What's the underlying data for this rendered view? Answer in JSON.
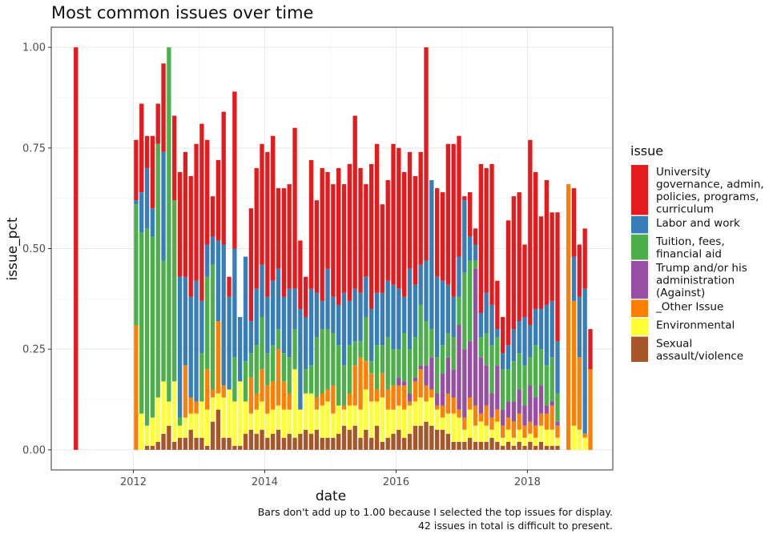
{
  "chart_data": {
    "type": "bar",
    "stacked": true,
    "title": "Most common issues over time",
    "xlabel": "date",
    "ylabel": "issue_pct",
    "x_ticks": [
      "2012",
      "2014",
      "2016",
      "2018"
    ],
    "y_ticks": [
      "0.00",
      "0.25",
      "0.50",
      "0.75",
      "1.00"
    ],
    "xlim": [
      2010.75,
      2019.3
    ],
    "ylim": [
      -0.05,
      1.05
    ],
    "grid": true,
    "legend_title": "issue",
    "legend_position": "right",
    "caption": [
      "Bars don't add up to 1.00 because I selected the top issues for display.",
      "42 issues in total is difficult to present."
    ],
    "series": [
      {
        "name": "Sexual assault/violence",
        "label_lines": [
          "Sexual",
          "assault/violence"
        ],
        "color": "#A65628"
      },
      {
        "name": "Environmental",
        "label_lines": [
          "Environmental"
        ],
        "color": "#FFFF33"
      },
      {
        "name": "_Other Issue",
        "label_lines": [
          "_Other Issue"
        ],
        "color": "#FF7F00"
      },
      {
        "name": "Trump and/or his administration (Against)",
        "label_lines": [
          "Trump and/or his",
          "administration",
          "(Against)"
        ],
        "color": "#984EA3"
      },
      {
        "name": "Tuition, fees, financial aid",
        "label_lines": [
          "Tuition, fees,",
          "financial aid"
        ],
        "color": "#4DAF4A"
      },
      {
        "name": "Labor and work",
        "label_lines": [
          "Labor and work"
        ],
        "color": "#377EB8"
      },
      {
        "name": "University governance, admin, policies, programs, curriculum",
        "label_lines": [
          "University",
          "governance, admin,",
          "policies, programs,",
          "curriculum"
        ],
        "color": "#E41A1C"
      }
    ],
    "legend_order": [
      6,
      5,
      4,
      3,
      2,
      1,
      0
    ],
    "bars": [
      {
        "date": "2011-02",
        "cum": [
          0,
          0,
          0,
          0,
          0,
          0,
          1.0
        ]
      },
      {
        "date": "2012-01",
        "cum": [
          0,
          0,
          0.31,
          0.31,
          0.61,
          0.62,
          0.77
        ]
      },
      {
        "date": "2012-02",
        "cum": [
          0,
          0.09,
          0.09,
          0.09,
          0.54,
          0.64,
          0.86
        ]
      },
      {
        "date": "2012-03",
        "cum": [
          0.01,
          0.06,
          0.06,
          0.06,
          0.55,
          0.7,
          0.78
        ]
      },
      {
        "date": "2012-04",
        "cum": [
          0.01,
          0.08,
          0.08,
          0.08,
          0.53,
          0.6,
          0.78
        ]
      },
      {
        "date": "2012-05",
        "cum": [
          0.02,
          0.13,
          0.13,
          0.13,
          0.76,
          0.76,
          0.86
        ]
      },
      {
        "date": "2012-06",
        "cum": [
          0.04,
          0.17,
          0.17,
          0.17,
          0.47,
          0.74,
          0.96
        ]
      },
      {
        "date": "2012-07",
        "cum": [
          0.06,
          0.12,
          0.12,
          0.12,
          1.0,
          1.0,
          1.0
        ]
      },
      {
        "date": "2012-08",
        "cum": [
          0.02,
          0.17,
          0.17,
          0.17,
          0.62,
          0.62,
          0.83
        ]
      },
      {
        "date": "2012-09",
        "cum": [
          0.03,
          0.06,
          0.06,
          0.06,
          0.08,
          0.43,
          0.69
        ]
      },
      {
        "date": "2012-10",
        "cum": [
          0.03,
          0.08,
          0.21,
          0.21,
          0.21,
          0.43,
          0.74
        ]
      },
      {
        "date": "2012-11",
        "cum": [
          0.05,
          0.09,
          0.13,
          0.13,
          0.13,
          0.38,
          0.68
        ]
      },
      {
        "date": "2012-12",
        "cum": [
          0.03,
          0.09,
          0.12,
          0.12,
          0.12,
          0.42,
          0.76
        ]
      },
      {
        "date": "2013-01",
        "cum": [
          0.03,
          0.12,
          0.12,
          0.12,
          0.24,
          0.37,
          0.81
        ]
      },
      {
        "date": "2013-02",
        "cum": [
          0.01,
          0.1,
          0.2,
          0.2,
          0.43,
          0.51,
          0.77
        ]
      },
      {
        "date": "2013-03",
        "cum": [
          0.07,
          0.13,
          0.15,
          0.15,
          0.46,
          0.53,
          0.63
        ]
      },
      {
        "date": "2013-04",
        "cum": [
          0.1,
          0.14,
          0.32,
          0.32,
          0.32,
          0.52,
          0.72
        ]
      },
      {
        "date": "2013-05",
        "cum": [
          0.03,
          0.13,
          0.16,
          0.16,
          0.16,
          0.51,
          0.84
        ]
      },
      {
        "date": "2013-06",
        "cum": [
          0.03,
          0.15,
          0.15,
          0.15,
          0.15,
          0.38,
          0.43
        ]
      },
      {
        "date": "2013-07",
        "cum": [
          0.01,
          0.12,
          0.12,
          0.12,
          0.23,
          0.5,
          0.89
        ]
      },
      {
        "date": "2013-08",
        "cum": [
          0.01,
          0.17,
          0.17,
          0.17,
          0.17,
          0.33,
          0.33
        ]
      },
      {
        "date": "2013-09",
        "cum": [
          0.04,
          0.12,
          0.12,
          0.12,
          0.22,
          0.48,
          0.48
        ]
      },
      {
        "date": "2013-10",
        "cum": [
          0.05,
          0.09,
          0.18,
          0.18,
          0.24,
          0.32,
          0.6
        ]
      },
      {
        "date": "2013-11",
        "cum": [
          0.04,
          0.1,
          0.14,
          0.14,
          0.26,
          0.4,
          0.7
        ]
      },
      {
        "date": "2013-12",
        "cum": [
          0.05,
          0.12,
          0.2,
          0.2,
          0.33,
          0.46,
          0.76
        ]
      },
      {
        "date": "2014-01",
        "cum": [
          0.03,
          0.09,
          0.16,
          0.16,
          0.24,
          0.38,
          0.74
        ]
      },
      {
        "date": "2014-02",
        "cum": [
          0.04,
          0.1,
          0.17,
          0.17,
          0.26,
          0.42,
          0.78
        ]
      },
      {
        "date": "2014-03",
        "cum": [
          0.05,
          0.11,
          0.25,
          0.25,
          0.3,
          0.45,
          0.65
        ]
      },
      {
        "date": "2014-04",
        "cum": [
          0.03,
          0.1,
          0.17,
          0.17,
          0.24,
          0.38,
          0.65
        ]
      },
      {
        "date": "2014-05",
        "cum": [
          0.04,
          0.1,
          0.14,
          0.14,
          0.23,
          0.4,
          0.66
        ]
      },
      {
        "date": "2014-06",
        "cum": [
          0.03,
          0.2,
          0.2,
          0.2,
          0.3,
          0.4,
          0.8
        ]
      },
      {
        "date": "2014-07",
        "cum": [
          0.04,
          0.1,
          0.1,
          0.1,
          0.1,
          0.35,
          0.52
        ]
      },
      {
        "date": "2014-08",
        "cum": [
          0.05,
          0.14,
          0.14,
          0.14,
          0.2,
          0.33,
          0.43
        ]
      },
      {
        "date": "2014-09",
        "cum": [
          0.04,
          0.14,
          0.14,
          0.14,
          0.21,
          0.4,
          0.72
        ]
      },
      {
        "date": "2014-10",
        "cum": [
          0.05,
          0.1,
          0.13,
          0.13,
          0.28,
          0.39,
          0.62
        ]
      },
      {
        "date": "2014-11",
        "cum": [
          0.03,
          0.11,
          0.14,
          0.14,
          0.3,
          0.37,
          0.7
        ]
      },
      {
        "date": "2014-12",
        "cum": [
          0.03,
          0.12,
          0.15,
          0.15,
          0.3,
          0.45,
          0.69
        ]
      },
      {
        "date": "2015-01",
        "cum": [
          0.03,
          0.09,
          0.16,
          0.16,
          0.29,
          0.38,
          0.66
        ]
      },
      {
        "date": "2015-02",
        "cum": [
          0.04,
          0.11,
          0.11,
          0.11,
          0.26,
          0.36,
          0.7
        ]
      },
      {
        "date": "2015-03",
        "cum": [
          0.06,
          0.1,
          0.11,
          0.11,
          0.21,
          0.39,
          0.66
        ]
      },
      {
        "date": "2015-04",
        "cum": [
          0.05,
          0.11,
          0.14,
          0.14,
          0.26,
          0.37,
          0.71
        ]
      },
      {
        "date": "2015-05",
        "cum": [
          0.06,
          0.11,
          0.21,
          0.21,
          0.27,
          0.4,
          0.83
        ]
      },
      {
        "date": "2015-06",
        "cum": [
          0.03,
          0.1,
          0.23,
          0.23,
          0.27,
          0.39,
          0.7
        ]
      },
      {
        "date": "2015-07",
        "cum": [
          0.05,
          0.15,
          0.22,
          0.22,
          0.33,
          0.43,
          0.66
        ]
      },
      {
        "date": "2015-08",
        "cum": [
          0.03,
          0.12,
          0.19,
          0.19,
          0.22,
          0.35,
          0.71
        ]
      },
      {
        "date": "2015-09",
        "cum": [
          0.06,
          0.12,
          0.15,
          0.15,
          0.26,
          0.39,
          0.76
        ]
      },
      {
        "date": "2015-10",
        "cum": [
          0.02,
          0.13,
          0.19,
          0.19,
          0.26,
          0.39,
          0.61
        ]
      },
      {
        "date": "2015-11",
        "cum": [
          0.03,
          0.1,
          0.15,
          0.15,
          0.28,
          0.42,
          0.67
        ]
      },
      {
        "date": "2015-12",
        "cum": [
          0.04,
          0.1,
          0.16,
          0.16,
          0.25,
          0.41,
          0.76
        ]
      },
      {
        "date": "2016-01",
        "cum": [
          0.05,
          0.11,
          0.16,
          0.18,
          0.25,
          0.4,
          0.75
        ]
      },
      {
        "date": "2016-02",
        "cum": [
          0.03,
          0.1,
          0.16,
          0.17,
          0.29,
          0.38,
          0.69
        ]
      },
      {
        "date": "2016-03",
        "cum": [
          0.04,
          0.11,
          0.12,
          0.14,
          0.25,
          0.45,
          0.74
        ]
      },
      {
        "date": "2016-04",
        "cum": [
          0.06,
          0.12,
          0.17,
          0.18,
          0.28,
          0.41,
          0.68
        ]
      },
      {
        "date": "2016-05",
        "cum": [
          0.06,
          0.13,
          0.2,
          0.21,
          0.36,
          0.46,
          0.74
        ]
      },
      {
        "date": "2016-06",
        "cum": [
          0.07,
          0.12,
          0.16,
          0.21,
          0.32,
          0.47,
          1.0
        ]
      },
      {
        "date": "2016-07",
        "cum": [
          0.06,
          0.13,
          0.15,
          0.23,
          0.3,
          0.67,
          0.67
        ]
      },
      {
        "date": "2016-08",
        "cum": [
          0.05,
          0.1,
          0.11,
          0.14,
          0.23,
          0.43,
          0.65
        ]
      },
      {
        "date": "2016-09",
        "cum": [
          0.05,
          0.08,
          0.11,
          0.19,
          0.26,
          0.42,
          0.64
        ]
      },
      {
        "date": "2016-10",
        "cum": [
          0.04,
          0.09,
          0.14,
          0.23,
          0.29,
          0.41,
          0.76
        ]
      },
      {
        "date": "2016-11",
        "cum": [
          0.02,
          0.09,
          0.13,
          0.2,
          0.28,
          0.38,
          0.76
        ]
      },
      {
        "date": "2016-12",
        "cum": [
          0.02,
          0.08,
          0.1,
          0.31,
          0.38,
          0.48,
          0.78
        ]
      },
      {
        "date": "2017-01",
        "cum": [
          0.02,
          0.05,
          0.08,
          0.25,
          0.44,
          0.62,
          0.63
        ]
      },
      {
        "date": "2017-02",
        "cum": [
          0.03,
          0.1,
          0.13,
          0.27,
          0.47,
          0.53,
          0.64
        ]
      },
      {
        "date": "2017-03",
        "cum": [
          0.02,
          0.06,
          0.11,
          0.45,
          0.47,
          0.51,
          0.55
        ]
      },
      {
        "date": "2017-04",
        "cum": [
          0.02,
          0.07,
          0.09,
          0.23,
          0.28,
          0.34,
          0.71
        ]
      },
      {
        "date": "2017-05",
        "cum": [
          0.02,
          0.06,
          0.11,
          0.21,
          0.29,
          0.39,
          0.7
        ]
      },
      {
        "date": "2017-06",
        "cum": [
          0.03,
          0.05,
          0.08,
          0.14,
          0.26,
          0.36,
          0.71
        ]
      },
      {
        "date": "2017-07",
        "cum": [
          0.02,
          0.07,
          0.1,
          0.21,
          0.28,
          0.3,
          0.42
        ]
      },
      {
        "date": "2017-08",
        "cum": [
          0.01,
          0.03,
          0.06,
          0.1,
          0.2,
          0.24,
          0.33
        ]
      },
      {
        "date": "2017-09",
        "cum": [
          0.02,
          0.05,
          0.08,
          0.12,
          0.2,
          0.26,
          0.57
        ]
      },
      {
        "date": "2017-10",
        "cum": [
          0.01,
          0.03,
          0.07,
          0.12,
          0.22,
          0.3,
          0.63
        ]
      },
      {
        "date": "2017-11",
        "cum": [
          0.02,
          0.05,
          0.09,
          0.15,
          0.24,
          0.32,
          0.64
        ]
      },
      {
        "date": "2017-12",
        "cum": [
          0.01,
          0.03,
          0.06,
          0.11,
          0.21,
          0.33,
          0.51
        ]
      },
      {
        "date": "2018-01",
        "cum": [
          0.02,
          0.04,
          0.07,
          0.16,
          0.23,
          0.31,
          0.77
        ]
      },
      {
        "date": "2018-02",
        "cum": [
          0.01,
          0.03,
          0.06,
          0.13,
          0.26,
          0.35,
          0.69
        ]
      },
      {
        "date": "2018-03",
        "cum": [
          0.02,
          0.06,
          0.09,
          0.16,
          0.25,
          0.35,
          0.58
        ]
      },
      {
        "date": "2018-04",
        "cum": [
          0.01,
          0.05,
          0.09,
          0.11,
          0.21,
          0.36,
          0.67
        ]
      },
      {
        "date": "2018-05",
        "cum": [
          0.01,
          0.05,
          0.11,
          0.12,
          0.23,
          0.37,
          0.59
        ]
      },
      {
        "date": "2018-06",
        "cum": [
          0.01,
          0.03,
          0.06,
          0.07,
          0.14,
          0.27,
          0.59
        ]
      },
      {
        "date": "2018-08",
        "cum": [
          0,
          0,
          0.66,
          0.66,
          0.66,
          0.66,
          0.66
        ]
      },
      {
        "date": "2018-09",
        "cum": [
          0,
          0.06,
          0.37,
          0.37,
          0.37,
          0.48,
          0.65
        ]
      },
      {
        "date": "2018-10",
        "cum": [
          0,
          0.05,
          0.23,
          0.23,
          0.23,
          0.38,
          0.51
        ]
      },
      {
        "date": "2018-11",
        "cum": [
          0,
          0.03,
          0.04,
          0.04,
          0.04,
          0.4,
          0.55
        ]
      },
      {
        "date": "2018-12",
        "cum": [
          0,
          0,
          0.2,
          0.2,
          0.2,
          0.2,
          0.3
        ]
      }
    ]
  }
}
